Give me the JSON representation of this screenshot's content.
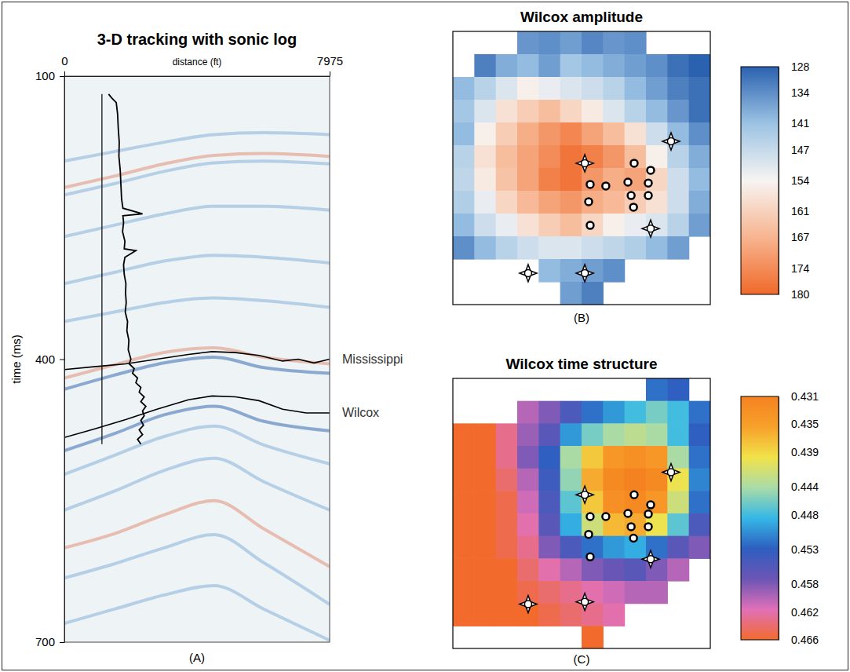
{
  "chart_data": [
    {
      "type": "line",
      "title": "3-D tracking with sonic log",
      "label": "(A)",
      "x_label": "distance (ft)",
      "y_label": "time (ms)",
      "xlim": [
        0,
        7975
      ],
      "xticks": [
        0,
        7975
      ],
      "ylim": [
        700,
        100
      ],
      "yticks": [
        100,
        400,
        700
      ],
      "series": [
        {
          "name": "Mississippi",
          "color": "#000000",
          "x": [
            0,
            897,
            1841,
            2785,
            3729,
            4437,
            5144,
            5852,
            6560,
            7032,
            7504,
            7975
          ],
          "values": [
            411,
            408,
            405,
            400,
            395,
            392,
            393,
            396,
            402,
            400,
            404,
            400
          ]
        },
        {
          "name": "Wilcox",
          "color": "#000000",
          "x": [
            0,
            897,
            1841,
            2785,
            3729,
            4437,
            5144,
            5852,
            6560,
            7268,
            7975
          ],
          "values": [
            483,
            474,
            464,
            453,
            443,
            439,
            440,
            444,
            453,
            457,
            457
          ]
        }
      ],
      "reflectors": [
        {
          "color": "#8fb8dc",
          "x": [
            0,
            1500,
            3000,
            4500,
            6000,
            7975
          ],
          "values": [
            190,
            180,
            170,
            162,
            160,
            162
          ]
        },
        {
          "color": "#e39a86",
          "x": [
            0,
            1500,
            3000,
            4500,
            6000,
            7975
          ],
          "values": [
            218,
            206,
            193,
            184,
            182,
            185
          ]
        },
        {
          "color": "#8fb8dc",
          "x": [
            0,
            1500,
            3000,
            4500,
            6000,
            7975
          ],
          "values": [
            226,
            214,
            201,
            192,
            190,
            193
          ]
        },
        {
          "color": "#8fb8dc",
          "x": [
            0,
            1500,
            3000,
            4500,
            6000,
            7975
          ],
          "values": [
            270,
            258,
            246,
            238,
            238,
            242
          ]
        },
        {
          "color": "#8fb8dc",
          "x": [
            0,
            1500,
            3000,
            4500,
            6000,
            7975
          ],
          "values": [
            320,
            308,
            296,
            290,
            292,
            298
          ]
        },
        {
          "color": "#8fb8dc",
          "x": [
            0,
            1500,
            3000,
            4500,
            6000,
            7975
          ],
          "values": [
            360,
            350,
            340,
            335,
            338,
            345
          ]
        },
        {
          "color": "#e39a86",
          "x": [
            0,
            1500,
            3000,
            4500,
            6000,
            7975
          ],
          "values": [
            420,
            406,
            393,
            388,
            398,
            405
          ]
        },
        {
          "color": "#4a78b8",
          "x": [
            0,
            1500,
            3000,
            4500,
            6000,
            7975
          ],
          "values": [
            432,
            417,
            404,
            398,
            409,
            415
          ]
        },
        {
          "color": "#4a78b8",
          "x": [
            0,
            1500,
            3000,
            4500,
            6000,
            7975
          ],
          "values": [
            497,
            479,
            459,
            450,
            466,
            476
          ]
        },
        {
          "color": "#8fb8dc",
          "x": [
            0,
            1500,
            3000,
            4500,
            6000,
            7975
          ],
          "values": [
            522,
            502,
            482,
            471,
            491,
            511
          ]
        },
        {
          "color": "#8fb8dc",
          "x": [
            0,
            1500,
            3000,
            4500,
            6000,
            7975
          ],
          "values": [
            560,
            540,
            518,
            505,
            530,
            560
          ]
        },
        {
          "color": "#e39a86",
          "x": [
            0,
            1500,
            3000,
            4500,
            6000,
            7975
          ],
          "values": [
            600,
            585,
            565,
            550,
            580,
            620
          ]
        },
        {
          "color": "#8fb8dc",
          "x": [
            0,
            1500,
            3000,
            4500,
            6000,
            7975
          ],
          "values": [
            632,
            617,
            600,
            586,
            616,
            660
          ]
        },
        {
          "color": "#8fb8dc",
          "x": [
            0,
            1500,
            3000,
            4500,
            6000,
            7975
          ],
          "values": [
            680,
            665,
            650,
            640,
            665,
            698
          ]
        }
      ],
      "sonic_log": {
        "color": "#000000",
        "baseline": 1130,
        "time": [
          119,
          123,
          128,
          140,
          155,
          170,
          185,
          200,
          215,
          230,
          240,
          246,
          248,
          255,
          265,
          275,
          283,
          285,
          292,
          300,
          310,
          320,
          330,
          340,
          350,
          360,
          370,
          380,
          390,
          400,
          405,
          410,
          415,
          420,
          425,
          430,
          435,
          440,
          445,
          450,
          455,
          460,
          465,
          470,
          475,
          480,
          485,
          490
        ],
        "distance": [
          1330,
          1420,
          1560,
          1600,
          1620,
          1650,
          1640,
          1680,
          1700,
          1720,
          1760,
          2350,
          1760,
          1780,
          1750,
          1820,
          1800,
          2150,
          1820,
          1780,
          1800,
          1850,
          1840,
          1860,
          1830,
          1900,
          1880,
          1940,
          1920,
          2000,
          1950,
          2100,
          2050,
          2200,
          2150,
          2300,
          2250,
          2400,
          2300,
          2450,
          2350,
          2400,
          2300,
          2380,
          2250,
          2350,
          2200,
          2300
        ]
      }
    },
    {
      "type": "heatmap",
      "title": "Wilcox amplitude",
      "label": "(B)",
      "colors": [
        "#f0692a",
        "#f7b48f",
        "#f7f4f2",
        "#9cc3e4",
        "#2b62b0"
      ],
      "colorbar": {
        "range": [
          180,
          128
        ],
        "ticks": [
          128,
          134,
          141,
          147,
          154,
          161,
          167,
          174,
          180
        ]
      },
      "cells": [
        [
          null,
          null,
          null,
          135,
          134,
          136,
          133,
          135,
          134,
          null,
          null,
          null
        ],
        [
          null,
          132,
          138,
          140,
          136,
          142,
          140,
          138,
          136,
          134,
          130,
          128
        ],
        [
          140,
          145,
          150,
          155,
          152,
          150,
          148,
          145,
          140,
          136,
          132,
          130
        ],
        [
          142,
          150,
          158,
          162,
          165,
          160,
          156,
          150,
          145,
          140,
          135,
          130
        ],
        [
          140,
          155,
          162,
          168,
          172,
          175,
          170,
          165,
          158,
          148,
          140,
          134
        ],
        [
          145,
          158,
          165,
          170,
          174,
          178,
          176,
          172,
          165,
          155,
          145,
          138
        ],
        [
          146,
          156,
          164,
          170,
          176,
          178,
          172,
          168,
          170,
          160,
          148,
          140
        ],
        [
          144,
          152,
          160,
          166,
          170,
          172,
          168,
          166,
          162,
          158,
          148,
          138
        ],
        [
          140,
          148,
          152,
          158,
          162,
          165,
          160,
          155,
          152,
          150,
          145,
          136
        ],
        [
          134,
          140,
          145,
          148,
          150,
          150,
          148,
          146,
          144,
          140,
          136,
          null
        ],
        [
          null,
          null,
          null,
          null,
          140,
          138,
          136,
          134,
          null,
          null,
          null,
          null
        ],
        [
          null,
          null,
          null,
          null,
          null,
          136,
          132,
          null,
          null,
          null,
          null,
          null
        ]
      ],
      "wells": [
        {
          "x": 6.15,
          "y": 5.79,
          "marker": "star"
        },
        {
          "x": 10.17,
          "y": 4.83,
          "marker": "star"
        },
        {
          "x": 9.22,
          "y": 8.66,
          "marker": "star"
        },
        {
          "x": 3.51,
          "y": 10.62,
          "marker": "star"
        },
        {
          "x": 6.15,
          "y": 10.62,
          "marker": "star"
        },
        {
          "x": 6.4,
          "y": 6.72,
          "marker": "circle"
        },
        {
          "x": 7.13,
          "y": 6.79,
          "marker": "circle"
        },
        {
          "x": 8.45,
          "y": 5.79,
          "marker": "circle"
        },
        {
          "x": 8.16,
          "y": 6.62,
          "marker": "circle"
        },
        {
          "x": 9.22,
          "y": 6.1,
          "marker": "circle"
        },
        {
          "x": 9.11,
          "y": 6.66,
          "marker": "circle"
        },
        {
          "x": 9.11,
          "y": 7.21,
          "marker": "circle"
        },
        {
          "x": 6.33,
          "y": 7.48,
          "marker": "circle"
        },
        {
          "x": 8.31,
          "y": 7.21,
          "marker": "circle"
        },
        {
          "x": 8.42,
          "y": 7.72,
          "marker": "circle"
        },
        {
          "x": 6.4,
          "y": 8.52,
          "marker": "circle"
        }
      ]
    },
    {
      "type": "heatmap",
      "title": "Wilcox time structure",
      "label": "(C)",
      "colors": [
        "#f26b2d",
        "#e070b8",
        "#6b55b5",
        "#2d5fc0",
        "#35b8e6",
        "#a9dba8",
        "#f1e24a",
        "#f7a12a",
        "#f58220"
      ],
      "colorbar": {
        "range": [
          0.466,
          0.431
        ],
        "ticks": [
          0.431,
          0.435,
          0.439,
          0.444,
          0.448,
          0.453,
          0.458,
          0.462,
          0.466
        ]
      },
      "cells": [
        [
          null,
          null,
          null,
          null,
          null,
          null,
          null,
          null,
          null,
          0.452,
          0.453,
          null
        ],
        [
          null,
          null,
          null,
          0.46,
          0.458,
          0.455,
          0.452,
          0.45,
          0.448,
          0.446,
          0.448,
          0.452
        ],
        [
          0.466,
          0.466,
          0.463,
          0.459,
          0.456,
          0.45,
          0.446,
          0.444,
          0.443,
          0.444,
          0.448,
          0.453
        ],
        [
          0.466,
          0.466,
          0.463,
          0.458,
          0.453,
          0.444,
          0.438,
          0.434,
          0.433,
          0.434,
          0.444,
          0.452
        ],
        [
          0.466,
          0.466,
          0.464,
          0.46,
          0.454,
          0.445,
          0.436,
          0.432,
          0.431,
          0.432,
          0.44,
          0.451
        ],
        [
          0.466,
          0.466,
          0.465,
          0.461,
          0.455,
          0.447,
          0.438,
          0.433,
          0.432,
          0.434,
          0.442,
          0.452
        ],
        [
          0.466,
          0.466,
          0.465,
          0.462,
          0.456,
          0.449,
          0.442,
          0.437,
          0.436,
          0.44,
          0.447,
          0.455
        ],
        [
          0.466,
          0.466,
          0.465,
          0.463,
          0.458,
          0.455,
          0.452,
          0.45,
          0.449,
          0.452,
          0.456,
          0.458
        ],
        [
          0.466,
          0.466,
          0.466,
          0.464,
          0.462,
          0.46,
          0.458,
          0.457,
          0.456,
          0.458,
          0.46,
          null
        ],
        [
          0.466,
          0.466,
          0.466,
          0.465,
          0.464,
          0.463,
          0.462,
          0.461,
          0.46,
          0.46,
          null,
          null
        ],
        [
          0.466,
          0.466,
          0.466,
          0.466,
          0.465,
          0.464,
          0.463,
          0.462,
          null,
          null,
          null,
          null
        ],
        [
          null,
          null,
          null,
          null,
          null,
          null,
          0.466,
          null,
          null,
          null,
          null,
          null
        ]
      ],
      "wells": [
        {
          "x": 6.15,
          "y": 5.17,
          "marker": "star"
        },
        {
          "x": 10.17,
          "y": 4.17,
          "marker": "star"
        },
        {
          "x": 9.22,
          "y": 8.03,
          "marker": "star"
        },
        {
          "x": 3.51,
          "y": 10.03,
          "marker": "star"
        },
        {
          "x": 6.15,
          "y": 9.93,
          "marker": "star"
        },
        {
          "x": 6.4,
          "y": 6.14,
          "marker": "circle"
        },
        {
          "x": 7.13,
          "y": 6.14,
          "marker": "circle"
        },
        {
          "x": 8.45,
          "y": 5.17,
          "marker": "circle"
        },
        {
          "x": 8.16,
          "y": 6.0,
          "marker": "circle"
        },
        {
          "x": 9.22,
          "y": 5.62,
          "marker": "circle"
        },
        {
          "x": 9.11,
          "y": 6.03,
          "marker": "circle"
        },
        {
          "x": 9.11,
          "y": 6.59,
          "marker": "circle"
        },
        {
          "x": 6.33,
          "y": 6.93,
          "marker": "circle"
        },
        {
          "x": 8.31,
          "y": 6.59,
          "marker": "circle"
        },
        {
          "x": 8.42,
          "y": 7.1,
          "marker": "circle"
        },
        {
          "x": 6.4,
          "y": 7.93,
          "marker": "circle"
        }
      ]
    }
  ]
}
